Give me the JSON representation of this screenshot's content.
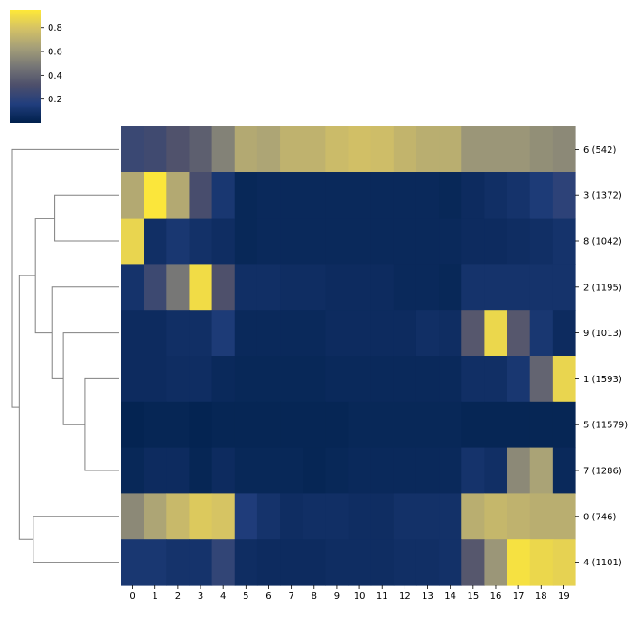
{
  "chart_data": {
    "type": "heatmap",
    "title": "",
    "xlabel": "",
    "ylabel": "",
    "x_categories": [
      "0",
      "1",
      "2",
      "3",
      "4",
      "5",
      "6",
      "7",
      "8",
      "9",
      "10",
      "11",
      "12",
      "13",
      "14",
      "15",
      "16",
      "17",
      "18",
      "19"
    ],
    "y_categories": [
      "6 (542)",
      "3 (1372)",
      "8 (1042)",
      "2 (1195)",
      "9 (1013)",
      "1 (1593)",
      "5 (11579)",
      "7 (1286)",
      "0 (746)",
      "4 (1101)"
    ],
    "values": [
      [
        0.25,
        0.27,
        0.33,
        0.38,
        0.52,
        0.68,
        0.66,
        0.72,
        0.72,
        0.76,
        0.78,
        0.77,
        0.73,
        0.7,
        0.7,
        0.6,
        0.6,
        0.6,
        0.57,
        0.55
      ],
      [
        0.68,
        0.94,
        0.68,
        0.3,
        0.12,
        0.04,
        0.05,
        0.05,
        0.05,
        0.05,
        0.05,
        0.05,
        0.05,
        0.05,
        0.04,
        0.06,
        0.08,
        0.1,
        0.14,
        0.2
      ],
      [
        0.87,
        0.08,
        0.12,
        0.09,
        0.07,
        0.04,
        0.05,
        0.05,
        0.05,
        0.05,
        0.05,
        0.05,
        0.05,
        0.05,
        0.05,
        0.06,
        0.06,
        0.07,
        0.08,
        0.1
      ],
      [
        0.1,
        0.26,
        0.48,
        0.9,
        0.32,
        0.08,
        0.08,
        0.07,
        0.07,
        0.06,
        0.06,
        0.06,
        0.05,
        0.05,
        0.04,
        0.1,
        0.1,
        0.1,
        0.1,
        0.1
      ],
      [
        0.06,
        0.06,
        0.08,
        0.08,
        0.14,
        0.05,
        0.05,
        0.05,
        0.05,
        0.06,
        0.06,
        0.06,
        0.06,
        0.08,
        0.07,
        0.35,
        0.88,
        0.35,
        0.12,
        0.06
      ],
      [
        0.06,
        0.06,
        0.07,
        0.07,
        0.05,
        0.04,
        0.04,
        0.04,
        0.04,
        0.05,
        0.05,
        0.05,
        0.05,
        0.05,
        0.05,
        0.08,
        0.08,
        0.12,
        0.4,
        0.87
      ],
      [
        0.02,
        0.03,
        0.03,
        0.02,
        0.03,
        0.03,
        0.03,
        0.03,
        0.03,
        0.03,
        0.04,
        0.04,
        0.04,
        0.04,
        0.04,
        0.03,
        0.03,
        0.03,
        0.03,
        0.03
      ],
      [
        0.04,
        0.06,
        0.06,
        0.03,
        0.06,
        0.04,
        0.04,
        0.04,
        0.03,
        0.04,
        0.05,
        0.05,
        0.05,
        0.05,
        0.05,
        0.1,
        0.08,
        0.55,
        0.65,
        0.05
      ],
      [
        0.55,
        0.66,
        0.75,
        0.82,
        0.8,
        0.15,
        0.1,
        0.07,
        0.08,
        0.08,
        0.07,
        0.07,
        0.09,
        0.09,
        0.09,
        0.7,
        0.74,
        0.72,
        0.7,
        0.7
      ],
      [
        0.12,
        0.12,
        0.1,
        0.1,
        0.22,
        0.07,
        0.06,
        0.06,
        0.06,
        0.07,
        0.07,
        0.07,
        0.08,
        0.08,
        0.09,
        0.35,
        0.6,
        0.92,
        0.88,
        0.86
      ]
    ],
    "vmin": 0.0,
    "vmax": 0.95,
    "colormap": "cividis",
    "colormap_stops": [
      "#00204c",
      "#213e7d",
      "#4d4f6b",
      "#767676",
      "#a59f78",
      "#d4c265",
      "#fee838"
    ],
    "colorbar": {
      "ticks": [
        0.2,
        0.4,
        0.6,
        0.8
      ],
      "tick_labels": [
        "0.2",
        "0.4",
        "0.6",
        "0.8"
      ],
      "placement": "top-left"
    },
    "row_dendrogram": {
      "merges": [
        {
          "a": "r1",
          "b": "r2",
          "height": 0.6
        },
        {
          "a": "r5",
          "b": "r7",
          "height": 0.32
        },
        {
          "a": "r4",
          "b": "c1",
          "height": 0.52
        },
        {
          "a": "r3",
          "b": "c2",
          "height": 0.62
        },
        {
          "a": "c3",
          "b": "c0",
          "height": 0.78
        },
        {
          "a": "r8",
          "b": "r9",
          "height": 0.8
        },
        {
          "a": "c4",
          "b": "c5",
          "height": 0.93
        },
        {
          "a": "r0",
          "b": "c6",
          "height": 1.0
        }
      ]
    }
  }
}
